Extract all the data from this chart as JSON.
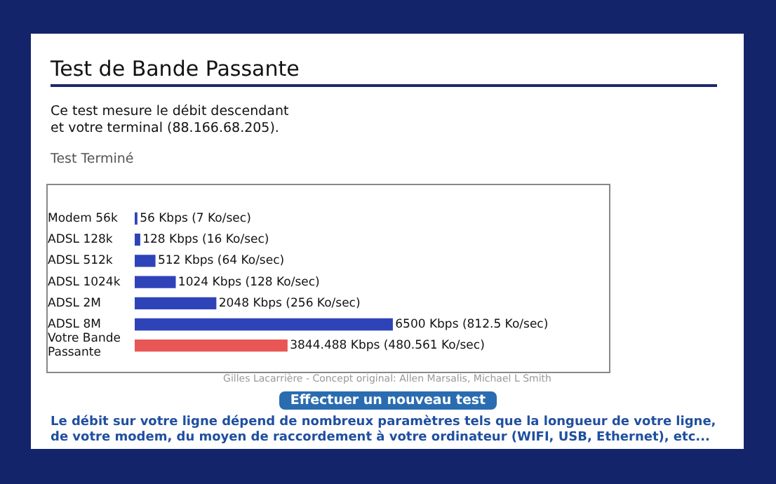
{
  "chart_data": {
    "type": "bar",
    "orientation": "horizontal",
    "title": "Test de Bande Passante",
    "categories": [
      "Modem 56k",
      "ADSL 128k",
      "ADSL 512k",
      "ADSL 1024k",
      "ADSL 2M",
      "ADSL 8M",
      "Votre Bande Passante"
    ],
    "values": [
      56,
      128,
      512,
      1024,
      2048,
      6500,
      3844.488
    ],
    "colors": [
      "#2f43b8",
      "#2f43b8",
      "#2f43b8",
      "#2f43b8",
      "#2f43b8",
      "#2f43b8",
      "#e85656"
    ],
    "value_labels": [
      "56 Kbps (7 Ko/sec)",
      "128 Kbps (16 Ko/sec)",
      "512 Kbps (64 Ko/sec)",
      "1024 Kbps (128 Ko/sec)",
      "2048 Kbps (256 Ko/sec)",
      "6500 Kbps (812.5 Ko/sec)",
      "3844.488 Kbps (480.561 Ko/sec)"
    ],
    "annotations": [
      "Ce test mesure le débit descendant",
      "et votre terminal (88.166.68.205).",
      "Test Terminé",
      "Gilles Lacarrière - Concept original: Allen Marsalis, Michael L Smith",
      "Effectuer un nouveau test",
      "Le débit sur votre ligne dépend de nombreux paramètres tels que la longueur de votre ligne, de votre modem, du moyen de raccordement à votre ordinateur (WIFI, USB, Ethernet), etc..."
    ],
    "grid": false,
    "legend": false
  }
}
